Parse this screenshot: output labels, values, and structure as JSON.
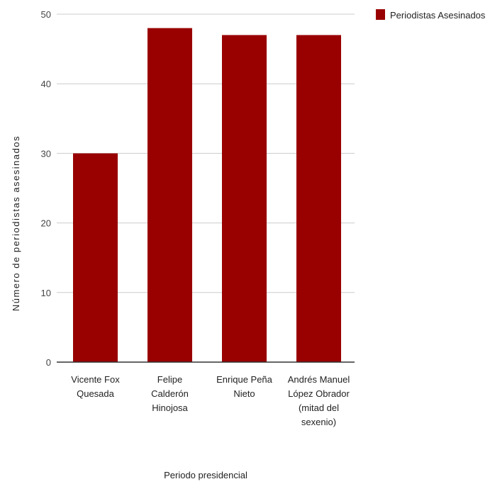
{
  "chart_data": {
    "type": "bar",
    "categories": [
      [
        "Vicente Fox",
        "Quesada"
      ],
      [
        "Felipe",
        "Calderón",
        "Hinojosa"
      ],
      [
        "Enrique Peña",
        "Nieto"
      ],
      [
        "Andrés Manuel",
        "López Obrador",
        "(mitad del",
        "sexenio)"
      ]
    ],
    "series": [
      {
        "name": "Periodistas Asesinados",
        "values": [
          30,
          48,
          47,
          47
        ]
      }
    ],
    "xlabel": "Periodo presidencial",
    "ylabel": "Número de periodistas asesinados",
    "ylim": [
      0,
      50
    ],
    "yticks": [
      0,
      10,
      20,
      30,
      40,
      50
    ],
    "grid": true,
    "legend_position": "top-right",
    "colors": {
      "bar": "#990000",
      "grid": "#cccccc",
      "axis": "#333333"
    }
  }
}
